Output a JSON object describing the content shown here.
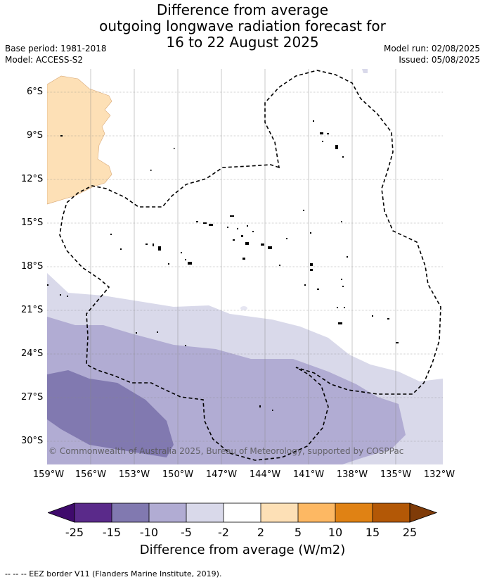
{
  "title": {
    "line1": "Difference from average",
    "line2": "outgoing longwave radiation forecast for",
    "line3": "16 to 22 August 2025"
  },
  "meta": {
    "base_period": "Base period: 1981-2018",
    "model": "Model: ACCESS-S2",
    "model_run": "Model run: 02/08/2025",
    "issued": "Issued: 05/08/2025"
  },
  "map": {
    "lat_labels": [
      "6°S",
      "9°S",
      "12°S",
      "15°S",
      "18°S",
      "21°S",
      "24°S",
      "27°S",
      "30°S"
    ],
    "lon_labels": [
      "159°W",
      "156°W",
      "153°W",
      "150°W",
      "147°W",
      "144°W",
      "141°W",
      "138°W",
      "135°W",
      "132°W"
    ],
    "copyright": "© Commonwealth of Australia 2025, Bureau of Meteorology, supported by COSPPac",
    "colors": {
      "pos_2_5": "#fde0b6",
      "neg_2_5": "#d9d9ea",
      "neg_5_10": "#b1acd3",
      "neg_10_15": "#8179b0",
      "land": "#000000",
      "eez": "#000000"
    }
  },
  "colorbar": {
    "tick_labels": [
      "-25",
      "-15",
      "-10",
      "-5",
      "-2",
      "2",
      "5",
      "10",
      "15",
      "25"
    ],
    "colors": [
      "#3f0a6c",
      "#5a2a8a",
      "#8179b0",
      "#b1acd3",
      "#d9d9ea",
      "#ffffff",
      "#fde0b6",
      "#fdb863",
      "#e08214",
      "#b35806",
      "#7f3b08"
    ],
    "title": "Difference from average (W/m2)"
  },
  "footer": "--  --  -- EEZ border V11 (Flanders Marine Institute, 2019)."
}
